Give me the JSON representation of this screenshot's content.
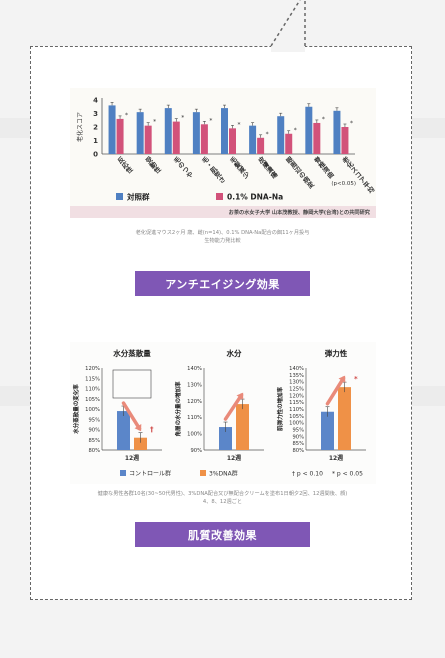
{
  "sections": {
    "aging": {
      "caption_lines": [
        "老化促進マウス2ヶ月 歳、雌(n=14)、0.1% DNA-Na配合の餌11ヶ月投与",
        "生物能力発比較"
      ],
      "label": "アンチエイジング効果"
    },
    "skin": {
      "caption_lines": [
        "健康な男性各群10名(30~50代男性)、3%DNA配合又び無配合クリームを塗布1日朝夕2回、12週間後、顔)",
        "4、8、12週ごと"
      ],
      "label": "肌質改善効果"
    }
  },
  "chart_data": [
    {
      "type": "bar",
      "title": "",
      "ylabel": "老化スコア",
      "ylim": [
        0,
        4
      ],
      "yticks": [
        "0",
        "1",
        "2",
        "3",
        "4"
      ],
      "categories": [
        "反応性",
        "受動性",
        "毛のつや",
        "毛・肌荒さ",
        "毛髪減少",
        "皮膚潰瘍",
        "眼周辺の病変",
        "脊椎湾曲",
        "老化スコア平均"
      ],
      "series": [
        {
          "name": "対照群",
          "color": "#4f80c2",
          "values": [
            3.6,
            3.1,
            3.4,
            3.1,
            3.4,
            2.1,
            2.8,
            3.5,
            3.2
          ]
        },
        {
          "name": "0.1% DNA-Na",
          "color": "#d2527a",
          "values": [
            2.6,
            2.1,
            2.4,
            2.2,
            1.9,
            1.2,
            1.5,
            2.3,
            2.0
          ]
        }
      ],
      "markers": [
        "*",
        "*",
        "*",
        "*",
        "*",
        "*",
        "*",
        "*",
        "*"
      ],
      "significance": "(p<0.05)",
      "credit": "お茶の水女子大学 山本茂教授、静岡大学(台湾)との共同研究",
      "legend": "bottom"
    },
    {
      "type": "bar",
      "title": "水分蒸散量",
      "ylabel": "水分蒸散量の変化率",
      "ylim": [
        80,
        120
      ],
      "yticks": [
        "80%",
        "85%",
        "90%",
        "95%",
        "100%",
        "105%",
        "110%",
        "115%",
        "120%"
      ],
      "categories": [
        "12週"
      ],
      "series": [
        {
          "name": "コントロール群",
          "color": "#5b86c9",
          "values": [
            99
          ]
        },
        {
          "name": "3%DNA群",
          "color": "#ef9147",
          "values": [
            86
          ]
        }
      ],
      "marker": "†",
      "marker_color": "#d04a48"
    },
    {
      "type": "bar",
      "title": "水分",
      "ylabel": "角層の水分量の増加率",
      "ylim": [
        90,
        140
      ],
      "yticks": [
        "90%",
        "100%",
        "110%",
        "120%",
        "130%",
        "140%"
      ],
      "categories": [
        "12週"
      ],
      "series": [
        {
          "name": "コントロール群",
          "color": "#5b86c9",
          "values": [
            104
          ]
        },
        {
          "name": "3%DNA群",
          "color": "#ef9147",
          "values": [
            118
          ]
        }
      ]
    },
    {
      "type": "bar",
      "title": "弾力性",
      "ylabel": "肌弾力性の増加率",
      "ylim": [
        80,
        140
      ],
      "yticks": [
        "80%",
        "85%",
        "90%",
        "95%",
        "100%",
        "105%",
        "110%",
        "115%",
        "120%",
        "125%",
        "130%",
        "135%",
        "140%"
      ],
      "categories": [
        "12週"
      ],
      "series": [
        {
          "name": "コントロール群",
          "color": "#5b86c9",
          "values": [
            108
          ]
        },
        {
          "name": "3%DNA群",
          "color": "#ef9147",
          "values": [
            126
          ]
        }
      ],
      "marker": "*",
      "marker_color": "#d04a48"
    }
  ],
  "legend2": {
    "control": "コントロール群",
    "dna": "3%DNA群",
    "p1": "† p < 0.10",
    "p2": "* p < 0.05"
  }
}
